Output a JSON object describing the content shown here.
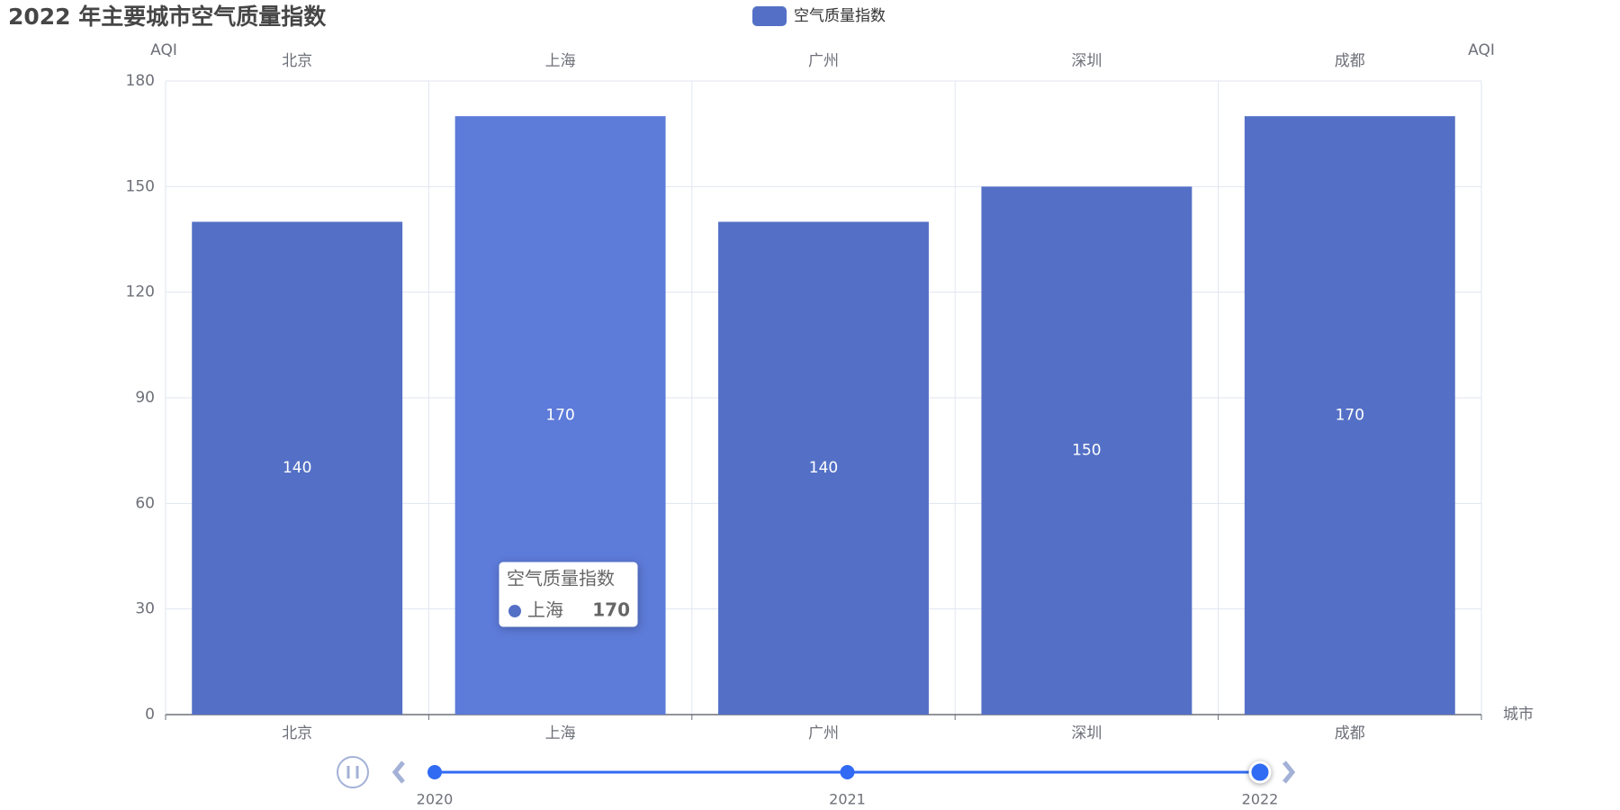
{
  "chart_data": {
    "type": "bar",
    "title": "2022 年主要城市空气质量指数",
    "categories": [
      "北京",
      "上海",
      "广州",
      "深圳",
      "成都"
    ],
    "series": [
      {
        "name": "空气质量指数",
        "color": "#5470c6",
        "values": [
          140,
          170,
          140,
          150,
          170
        ]
      }
    ],
    "y_label": "AQI",
    "x_label": "城市",
    "ylim": [
      0,
      180
    ],
    "yticks": [
      0,
      30,
      60,
      90,
      120,
      150,
      180
    ],
    "grid": true,
    "legend": "top",
    "tooltip": {
      "title": "空气质量指数",
      "label": "上海",
      "value": 170
    },
    "timeline": {
      "years": [
        "2020",
        "2021",
        "2022"
      ],
      "current": "2022"
    }
  }
}
